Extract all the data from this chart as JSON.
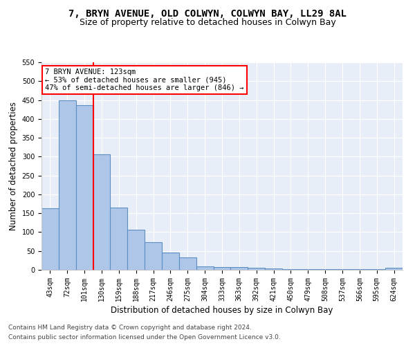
{
  "title": "7, BRYN AVENUE, OLD COLWYN, COLWYN BAY, LL29 8AL",
  "subtitle": "Size of property relative to detached houses in Colwyn Bay",
  "xlabel": "Distribution of detached houses by size in Colwyn Bay",
  "ylabel": "Number of detached properties",
  "categories": [
    "43sqm",
    "72sqm",
    "101sqm",
    "130sqm",
    "159sqm",
    "188sqm",
    "217sqm",
    "246sqm",
    "275sqm",
    "304sqm",
    "333sqm",
    "363sqm",
    "392sqm",
    "421sqm",
    "450sqm",
    "479sqm",
    "508sqm",
    "537sqm",
    "566sqm",
    "595sqm",
    "624sqm"
  ],
  "values": [
    163,
    450,
    437,
    307,
    165,
    106,
    74,
    45,
    33,
    10,
    8,
    8,
    5,
    3,
    2,
    2,
    2,
    2,
    1,
    1,
    5
  ],
  "bar_color": "#aec6e8",
  "bar_edge_color": "#5a8fc4",
  "bar_edge_width": 0.8,
  "annotation_text": "7 BRYN AVENUE: 123sqm\n← 53% of detached houses are smaller (945)\n47% of semi-detached houses are larger (846) →",
  "annotation_box_color": "white",
  "annotation_box_edge_color": "red",
  "vline_color": "red",
  "vline_x": 2.5,
  "ylim": [
    0,
    550
  ],
  "yticks": [
    0,
    50,
    100,
    150,
    200,
    250,
    300,
    350,
    400,
    450,
    500,
    550
  ],
  "background_color": "#e8eef7",
  "footer_line1": "Contains HM Land Registry data © Crown copyright and database right 2024.",
  "footer_line2": "Contains public sector information licensed under the Open Government Licence v3.0.",
  "title_fontsize": 10,
  "subtitle_fontsize": 9,
  "xlabel_fontsize": 8.5,
  "ylabel_fontsize": 8.5,
  "tick_fontsize": 7,
  "footer_fontsize": 6.5,
  "annotation_fontsize": 7.5
}
